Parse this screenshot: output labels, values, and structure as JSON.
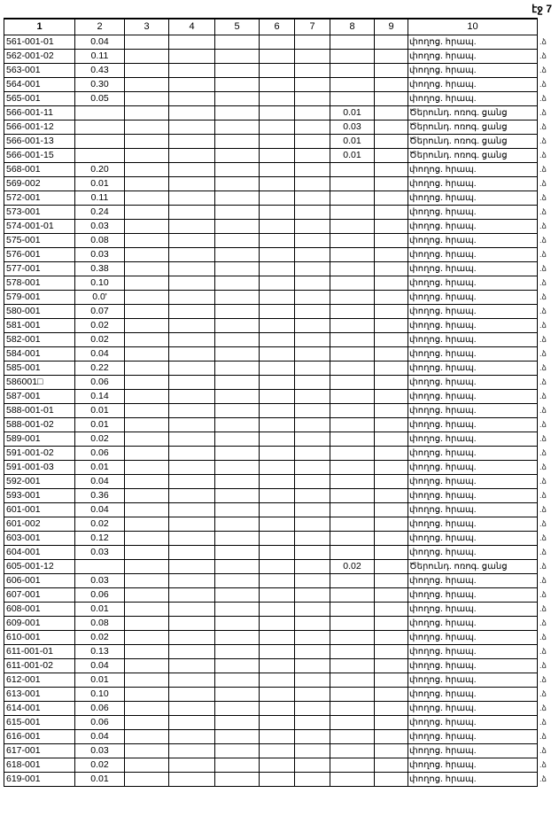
{
  "page_label": "էջ 7",
  "columns": [
    "1",
    "2",
    "3",
    "4",
    "5",
    "6",
    "7",
    "8",
    "9",
    "10"
  ],
  "margin_mark": ".ձ",
  "rows": [
    {
      "id": "561-001-01",
      "c2": "0.04",
      "c8": "",
      "note": "փողոց. հրապ."
    },
    {
      "id": "562-001-02",
      "c2": "0.11",
      "c8": "",
      "note": "փողոց. հրապ."
    },
    {
      "id": "563-001",
      "c2": "0.43",
      "c8": "",
      "note": "փողոց. հրապ."
    },
    {
      "id": "564-001",
      "c2": "0.30",
      "c8": "",
      "note": "փողոց. հրապ."
    },
    {
      "id": "565-001",
      "c2": "0.05",
      "c8": "",
      "note": "փողոց. հրապ."
    },
    {
      "id": "566-001-11",
      "c2": "",
      "c8": "0.01",
      "note": "Ծերունդ. ոռոգ. ցանց"
    },
    {
      "id": "566-001-12",
      "c2": "",
      "c8": "0.03",
      "note": "Ծերունդ. ոռոգ. ցանց"
    },
    {
      "id": "566-001-13",
      "c2": "",
      "c8": "0.01",
      "note": "Ծերունդ. ոռոգ. ցանց"
    },
    {
      "id": "566-001-15",
      "c2": "",
      "c8": "0.01",
      "note": "Ծերունդ. ոռոգ. ցանց"
    },
    {
      "id": "568-001",
      "c2": "0.20",
      "c8": "",
      "note": "փողոց. հրապ."
    },
    {
      "id": "569-002",
      "c2": "0.01",
      "c8": "",
      "note": "փողոց. հրապ."
    },
    {
      "id": "572-001",
      "c2": "0.11",
      "c8": "",
      "note": "փողոց. հրապ."
    },
    {
      "id": "573-001",
      "c2": "0.24",
      "c8": "",
      "note": "փողոց. հրապ."
    },
    {
      "id": "574-001-01",
      "c2": "0.03",
      "c8": "",
      "note": "փողոց. հրապ."
    },
    {
      "id": "575-001",
      "c2": "0.08",
      "c8": "",
      "note": "փողոց. հրապ."
    },
    {
      "id": "576-001",
      "c2": "0.03",
      "c8": "",
      "note": "փողոց. հրապ."
    },
    {
      "id": "577-001",
      "c2": "0.38",
      "c8": "",
      "note": "փողոց. հրապ."
    },
    {
      "id": "578-001",
      "c2": "0.10",
      "c8": "",
      "note": "փողոց. հրապ."
    },
    {
      "id": "579-001",
      "c2": "0.0'",
      "c8": "",
      "note": "փողոց. հրապ."
    },
    {
      "id": "580-001",
      "c2": "0.07",
      "c8": "",
      "note": "փողոց. հրապ."
    },
    {
      "id": "581-001",
      "c2": "0.02",
      "c8": "",
      "note": "փողոց. հրապ."
    },
    {
      "id": "582-001",
      "c2": "0.02",
      "c8": "",
      "note": "փողոց. հրապ."
    },
    {
      "id": "584-001",
      "c2": "0.04",
      "c8": "",
      "note": "փողոց. հրապ."
    },
    {
      "id": "585-001",
      "c2": "0.22",
      "c8": "",
      "note": "փողոց. հրապ."
    },
    {
      "id": "586001□",
      "c2": "0.06",
      "c8": "",
      "note": "փողոց. հրապ."
    },
    {
      "id": "587-001",
      "c2": "0.14",
      "c8": "",
      "note": "փողոց. հրապ."
    },
    {
      "id": "588-001-01",
      "c2": "0.01",
      "c8": "",
      "note": "փողոց. հրապ."
    },
    {
      "id": "588-001-02",
      "c2": "0.01",
      "c8": "",
      "note": "փողոց. հրապ."
    },
    {
      "id": "589-001",
      "c2": "0.02",
      "c8": "",
      "note": "փողոց. հրապ."
    },
    {
      "id": "591-001-02",
      "c2": "0.06",
      "c8": "",
      "note": "փողոց. հրապ."
    },
    {
      "id": "591-001-03",
      "c2": "0.01",
      "c8": "",
      "note": "փողոց. հրապ."
    },
    {
      "id": "592-001",
      "c2": "0.04",
      "c8": "",
      "note": "փողոց. հրապ."
    },
    {
      "id": "593-001",
      "c2": "0.36",
      "c8": "",
      "note": "փողոց. հրապ."
    },
    {
      "id": "601-001",
      "c2": "0.04",
      "c8": "",
      "note": "փողոց. հրապ."
    },
    {
      "id": "601-002",
      "c2": "0.02",
      "c8": "",
      "note": "փողոց. հրապ."
    },
    {
      "id": "603-001",
      "c2": "0.12",
      "c8": "",
      "note": "փողոց. հրապ."
    },
    {
      "id": "604-001",
      "c2": "0.03",
      "c8": "",
      "note": "փողոց. հրապ."
    },
    {
      "id": "605-001-12",
      "c2": "",
      "c8": "0.02",
      "note": "Ծերունդ. ոռոգ. ցանց"
    },
    {
      "id": "606-001",
      "c2": "0.03",
      "c8": "",
      "note": "փողոց. հրապ."
    },
    {
      "id": "607-001",
      "c2": "0.06",
      "c8": "",
      "note": "փողոց. հրապ."
    },
    {
      "id": "608-001",
      "c2": "0.01",
      "c8": "",
      "note": "փողոց. հրապ."
    },
    {
      "id": "609-001",
      "c2": "0.08",
      "c8": "",
      "note": "փողոց. հրապ."
    },
    {
      "id": "610-001",
      "c2": "0.02",
      "c8": "",
      "note": "փողոց. հրապ."
    },
    {
      "id": "611-001-01",
      "c2": "0.13",
      "c8": "",
      "note": "փողոց. հրապ."
    },
    {
      "id": "611-001-02",
      "c2": "0.04",
      "c8": "",
      "note": "փողոց. հրապ."
    },
    {
      "id": "612-001",
      "c2": "0.01",
      "c8": "",
      "note": "փողոց. հրապ."
    },
    {
      "id": "613-001",
      "c2": "0.10",
      "c8": "",
      "note": "փողոց. հրապ."
    },
    {
      "id": "614-001",
      "c2": "0.06",
      "c8": "",
      "note": "փողոց. հրապ."
    },
    {
      "id": "615-001",
      "c2": "0.06",
      "c8": "",
      "note": "փողոց. հրապ."
    },
    {
      "id": "616-001",
      "c2": "0.04",
      "c8": "",
      "note": "փողոց. հրապ."
    },
    {
      "id": "617-001",
      "c2": "0.03",
      "c8": "",
      "note": "փողոց. հրապ."
    },
    {
      "id": "618-001",
      "c2": "0.02",
      "c8": "",
      "note": "փողոց. հրապ."
    },
    {
      "id": "619-001",
      "c2": "0.01",
      "c8": "",
      "note": "փողոց. հրապ."
    }
  ]
}
